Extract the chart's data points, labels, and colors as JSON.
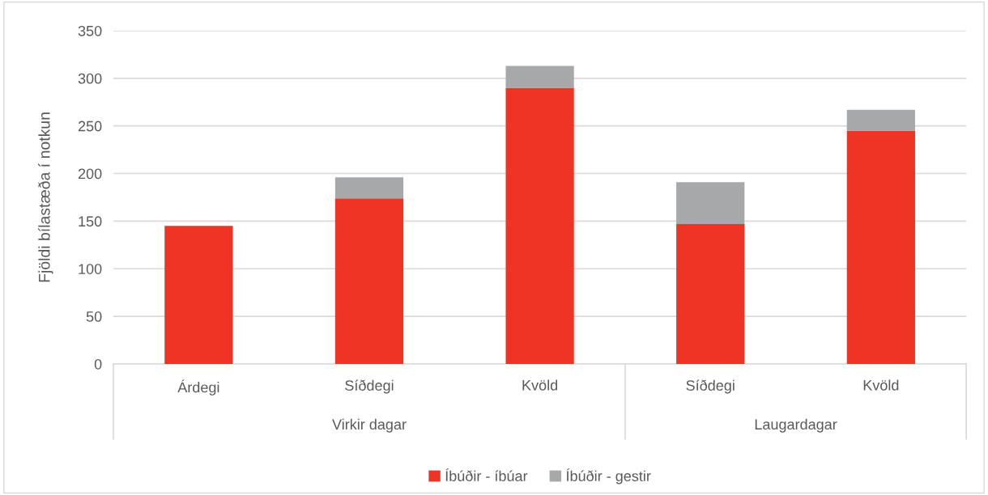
{
  "chart_data": {
    "type": "bar",
    "stacked": true,
    "ylabel": "Fjöldi bílastæða í notkun",
    "categories": [
      "Árdegi",
      "Síðdegi",
      "Kvöld",
      "Síðdegi",
      "Kvöld"
    ],
    "annotations": [
      "Virkir dagar",
      "Laugardagar"
    ],
    "series": [
      {
        "name": "Íbúðir - íbúar",
        "color": "#ee3424",
        "values": [
          145,
          174,
          290,
          147,
          245
        ]
      },
      {
        "name": "Íbúðir - gestir",
        "color": "#a7a8aa",
        "values": [
          0,
          22,
          23,
          44,
          22
        ]
      }
    ],
    "ylim": [
      0,
      350
    ],
    "yticks": [
      0,
      50,
      100,
      150,
      200,
      250,
      300,
      350
    ],
    "grid": "y",
    "legend": "bottom"
  }
}
